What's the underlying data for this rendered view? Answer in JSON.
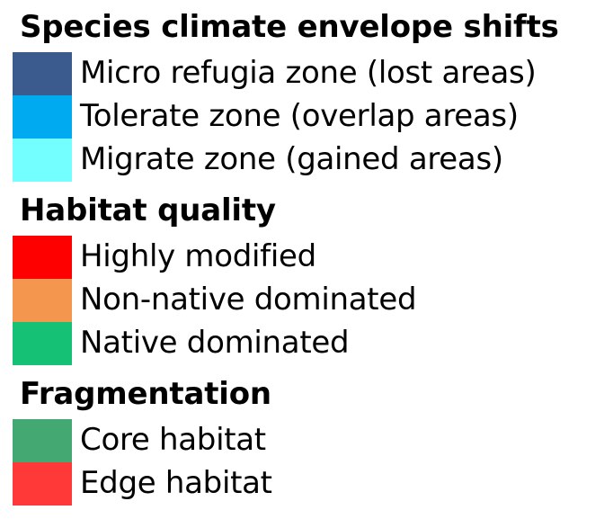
{
  "legend": {
    "sections": [
      {
        "title": "Species climate envelope shifts",
        "items": [
          {
            "label": "Micro refugia zone (lost areas)",
            "color": "#3b5b8f"
          },
          {
            "label": "Tolerate zone (overlap areas)",
            "color": "#00aaf0"
          },
          {
            "label": "Migrate zone (gained areas)",
            "color": "#73ffff"
          }
        ]
      },
      {
        "title": "Habitat quality",
        "items": [
          {
            "label": "Highly modified",
            "color": "#ff0000"
          },
          {
            "label": "Non-native dominated",
            "color": "#f5964f"
          },
          {
            "label": "Native dominated",
            "color": "#14c175"
          }
        ]
      },
      {
        "title": "Fragmentation",
        "items": [
          {
            "label": "Core habitat",
            "color": "#43a871"
          },
          {
            "label": "Edge habitat",
            "color": "#ff3838"
          }
        ]
      }
    ]
  }
}
